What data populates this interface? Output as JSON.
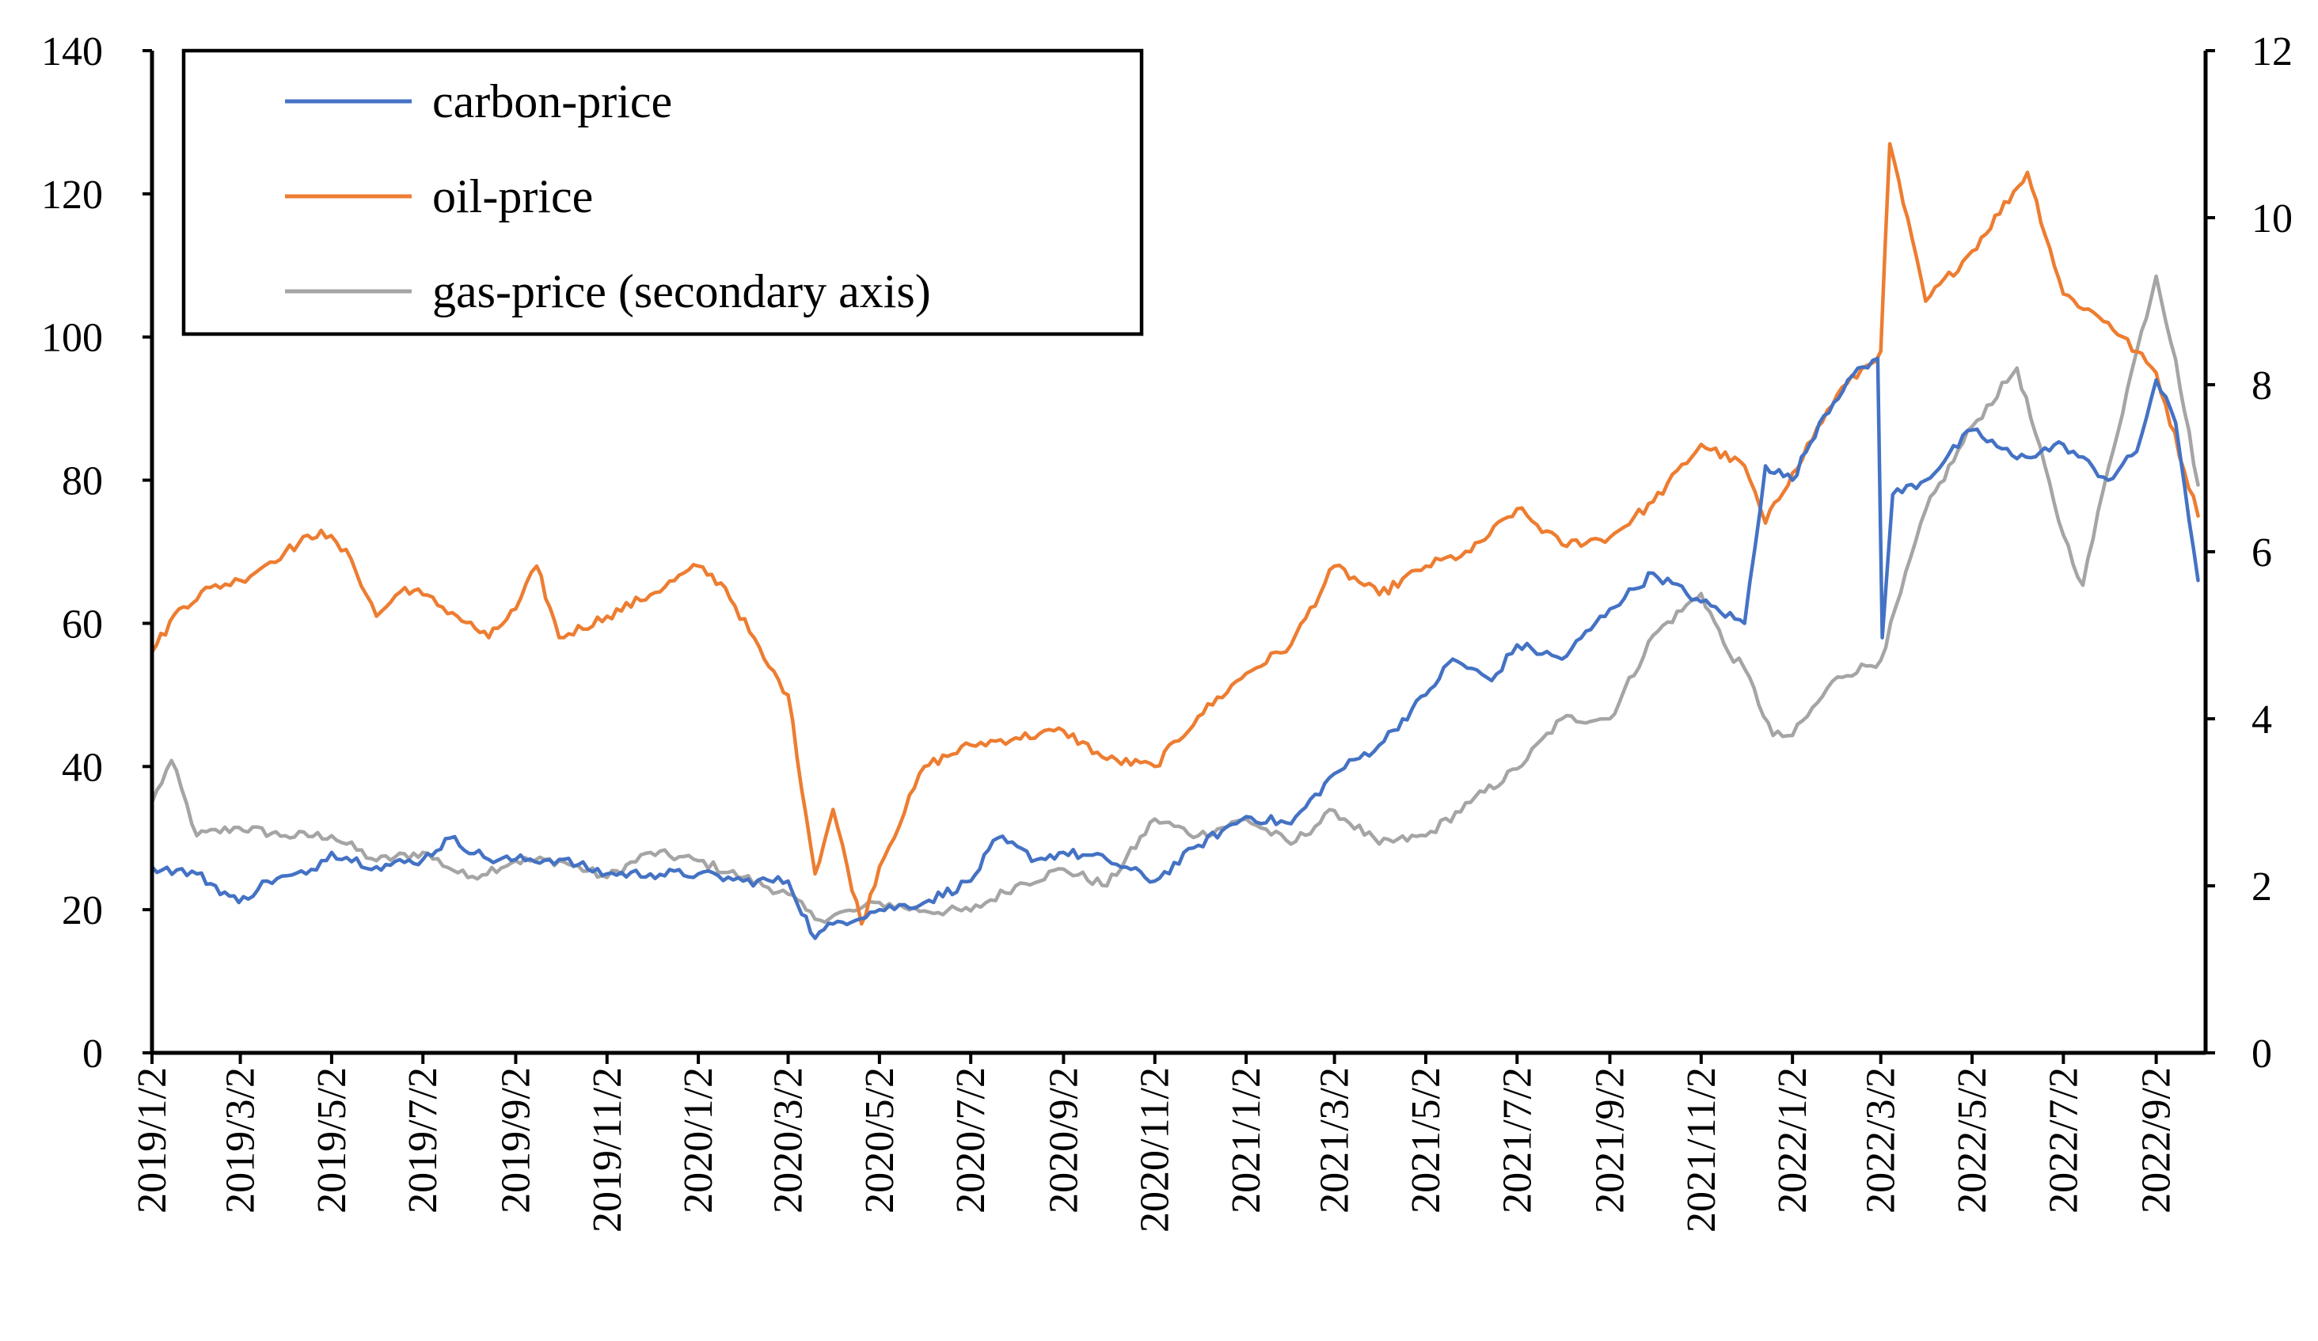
{
  "chart_data": {
    "type": "line",
    "title": "",
    "xlabel": "",
    "ylabel": "",
    "y2label": "",
    "ylim": [
      0,
      140
    ],
    "y2lim": [
      0,
      12
    ],
    "yticks": [
      "0",
      "20",
      "40",
      "60",
      "80",
      "100",
      "120",
      "140"
    ],
    "y2ticks": [
      "0",
      "2",
      "4",
      "6",
      "8",
      "10",
      "12"
    ],
    "x_ticks": [
      "2019/1/2",
      "2019/3/2",
      "2019/5/2",
      "2019/7/2",
      "2019/9/2",
      "2019/11/2",
      "2020/1/2",
      "2020/3/2",
      "2020/5/2",
      "2020/7/2",
      "2020/9/2",
      "2020/11/2",
      "2021/1/2",
      "2021/3/2",
      "2021/5/2",
      "2021/7/2",
      "2021/9/2",
      "2021/11/2",
      "2022/1/2",
      "2022/3/2",
      "2022/5/2",
      "2022/7/2",
      "2022/9/2"
    ],
    "legend_position": "top-left",
    "series": [
      {
        "name": "carbon-price",
        "axis": "primary",
        "color": "#4472C4",
        "x": [
          "2019/1/2",
          "2019/2/1",
          "2019/3/1",
          "2019/3/20",
          "2019/4/15",
          "2019/5/2",
          "2019/6/1",
          "2019/7/2",
          "2019/7/20",
          "2019/8/15",
          "2019/9/2",
          "2019/10/1",
          "2019/11/2",
          "2019/12/1",
          "2020/1/2",
          "2020/2/1",
          "2020/3/2",
          "2020/3/20",
          "2020/4/1",
          "2020/5/2",
          "2020/6/1",
          "2020/7/2",
          "2020/7/20",
          "2020/8/15",
          "2020/9/2",
          "2020/10/1",
          "2020/11/2",
          "2020/12/1",
          "2021/1/2",
          "2021/2/1",
          "2021/3/2",
          "2021/4/1",
          "2021/5/2",
          "2021/5/20",
          "2021/6/15",
          "2021/7/2",
          "2021/8/1",
          "2021/9/2",
          "2021/10/1",
          "2021/11/2",
          "2021/12/1",
          "2021/12/15",
          "2022/1/2",
          "2022/1/20",
          "2022/2/8",
          "2022/2/28",
          "2022/3/3",
          "2022/3/10",
          "2022/4/1",
          "2022/5/2",
          "2022/6/1",
          "2022/7/2",
          "2022/8/1",
          "2022/8/20",
          "2022/9/2",
          "2022/9/15",
          "2022/9/30"
        ],
        "values": [
          26,
          25,
          21,
          24,
          25,
          28,
          26,
          27,
          30,
          27,
          27,
          27,
          25,
          25,
          25,
          24,
          24,
          16,
          18,
          20,
          21,
          24,
          30,
          27,
          28,
          27,
          24,
          29,
          33,
          32,
          39,
          43,
          50,
          55,
          52,
          57,
          55,
          62,
          67,
          63,
          60,
          82,
          80,
          88,
          94,
          97,
          58,
          78,
          80,
          87,
          83,
          85,
          80,
          84,
          94,
          88,
          66
        ]
      },
      {
        "name": "oil-price",
        "axis": "primary",
        "color": "#ED7D31",
        "x": [
          "2019/1/2",
          "2019/1/20",
          "2019/2/10",
          "2019/3/2",
          "2019/4/1",
          "2019/4/25",
          "2019/5/15",
          "2019/6/1",
          "2019/6/20",
          "2019/7/2",
          "2019/7/25",
          "2019/8/15",
          "2019/9/2",
          "2019/9/16",
          "2019/10/1",
          "2019/11/2",
          "2019/12/1",
          "2020/1/2",
          "2020/1/20",
          "2020/2/15",
          "2020/3/2",
          "2020/3/20",
          "2020/4/1",
          "2020/4/20",
          "2020/5/2",
          "2020/6/1",
          "2020/7/2",
          "2020/8/1",
          "2020/9/2",
          "2020/10/1",
          "2020/11/2",
          "2020/12/1",
          "2021/1/2",
          "2021/2/1",
          "2021/3/2",
          "2021/4/1",
          "2021/5/2",
          "2021/6/1",
          "2021/7/2",
          "2021/8/1",
          "2021/9/2",
          "2021/10/1",
          "2021/11/2",
          "2021/12/1",
          "2021/12/15",
          "2022/1/2",
          "2022/2/1",
          "2022/3/2",
          "2022/3/8",
          "2022/4/1",
          "2022/5/2",
          "2022/6/8",
          "2022/7/2",
          "2022/8/1",
          "2022/9/2",
          "2022/9/30"
        ],
        "values": [
          56,
          62,
          65,
          66,
          70,
          73,
          69,
          61,
          65,
          64,
          61,
          58,
          62,
          68,
          58,
          61,
          64,
          68,
          65,
          55,
          50,
          25,
          34,
          18,
          26,
          40,
          43,
          44,
          45,
          41,
          40,
          47,
          53,
          57,
          68,
          64,
          68,
          70,
          76,
          71,
          72,
          77,
          85,
          82,
          74,
          81,
          92,
          98,
          127,
          105,
          112,
          123,
          106,
          102,
          95,
          75
        ]
      },
      {
        "name": "gas-price (secondary axis)",
        "axis": "secondary",
        "color": "#A5A5A5",
        "x": [
          "2019/1/2",
          "2019/1/15",
          "2019/2/1",
          "2019/3/1",
          "2019/4/1",
          "2019/5/2",
          "2019/6/1",
          "2019/7/2",
          "2019/8/1",
          "2019/9/2",
          "2019/10/1",
          "2019/11/2",
          "2019/12/1",
          "2020/1/2",
          "2020/2/1",
          "2020/3/2",
          "2020/3/20",
          "2020/4/15",
          "2020/5/2",
          "2020/6/1",
          "2020/7/2",
          "2020/8/1",
          "2020/9/2",
          "2020/10/1",
          "2020/11/2",
          "2020/12/1",
          "2021/1/2",
          "2021/2/1",
          "2021/3/2",
          "2021/4/1",
          "2021/5/2",
          "2021/6/1",
          "2021/7/2",
          "2021/8/1",
          "2021/9/2",
          "2021/10/1",
          "2021/11/2",
          "2021/11/20",
          "2021/12/1",
          "2021/12/20",
          "2022/1/2",
          "2022/2/1",
          "2022/3/2",
          "2022/4/1",
          "2022/5/2",
          "2022/6/1",
          "2022/7/2",
          "2022/7/15",
          "2022/8/1",
          "2022/8/20",
          "2022/9/2",
          "2022/9/15",
          "2022/9/30"
        ],
        "values": [
          3.0,
          3.5,
          2.6,
          2.7,
          2.6,
          2.6,
          2.3,
          2.4,
          2.1,
          2.3,
          2.3,
          2.1,
          2.4,
          2.3,
          2.1,
          1.9,
          1.6,
          1.7,
          1.8,
          1.7,
          1.7,
          2.0,
          2.2,
          2.0,
          2.8,
          2.6,
          2.8,
          2.5,
          2.9,
          2.5,
          2.6,
          3.0,
          3.4,
          4.0,
          4.0,
          5.0,
          5.5,
          4.8,
          4.6,
          3.8,
          3.8,
          4.5,
          4.7,
          6.5,
          7.5,
          8.2,
          6.2,
          5.6,
          7.0,
          8.4,
          9.3,
          8.3,
          6.8
        ]
      }
    ]
  }
}
